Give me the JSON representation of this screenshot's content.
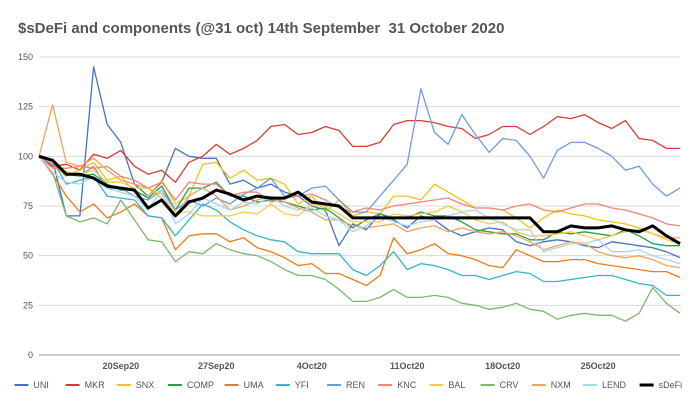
{
  "chart_data": {
    "type": "line",
    "title": "$sDeFi and components (@31 oct) 14th September  31 October 2020",
    "xlabel": "",
    "ylabel": "",
    "ylim": [
      0,
      150
    ],
    "yticks": [
      "0",
      "25",
      "50",
      "75",
      "100",
      "125",
      "150"
    ],
    "x": [
      "14Sep20",
      "15Sep20",
      "16Sep20",
      "17Sep20",
      "18Sep20",
      "19Sep20",
      "20Sep20",
      "21Sep20",
      "22Sep20",
      "23Sep20",
      "24Sep20",
      "25Sep20",
      "26Sep20",
      "27Sep20",
      "28Sep20",
      "29Sep20",
      "30Sep20",
      "1Oct20",
      "2Oct20",
      "3Oct20",
      "4Oct20",
      "5Oct20",
      "6Oct20",
      "7Oct20",
      "8Oct20",
      "9Oct20",
      "10Oct20",
      "11Oct20",
      "12Oct20",
      "13Oct20",
      "14Oct20",
      "15Oct20",
      "16Oct20",
      "17Oct20",
      "18Oct20",
      "19Oct20",
      "20Oct20",
      "21Oct20",
      "22Oct20",
      "23Oct20",
      "24Oct20",
      "25Oct20",
      "26Oct20",
      "27Oct20",
      "28Oct20",
      "29Oct20",
      "30Oct20",
      "31Oct20"
    ],
    "xtick_labels": [
      "20Sep20",
      "27Sep20",
      "4Oct20",
      "11Oct20",
      "18Oct20",
      "25Oct20"
    ],
    "xtick_positions": [
      "20Sep20",
      "27Sep20",
      "4Oct20",
      "11Oct20",
      "18Oct20",
      "25Oct20"
    ],
    "grid": true,
    "legend_position": "bottom",
    "series": [
      {
        "name": "UNI",
        "color": "#4472c4",
        "width": 1.3,
        "values": [
          100,
          98,
          70,
          70,
          145,
          116,
          107,
          86,
          80,
          87,
          104,
          100,
          99,
          99,
          86,
          88,
          84,
          86,
          82,
          80,
          75,
          73,
          55,
          66,
          63,
          71,
          68,
          64,
          70,
          68,
          63,
          60,
          62,
          64,
          63,
          57,
          55,
          57,
          58,
          57,
          55,
          54,
          57,
          56,
          55,
          54,
          52,
          49
        ]
      },
      {
        "name": "MKR",
        "color": "#db3a34",
        "width": 1.3,
        "values": [
          100,
          95,
          96,
          93,
          101,
          99,
          103,
          95,
          91,
          93,
          87,
          97,
          100,
          106,
          101,
          104,
          108,
          115,
          116,
          111,
          112,
          115,
          113,
          105,
          105,
          107,
          116,
          118,
          118,
          117,
          115,
          114,
          109,
          111,
          115,
          115,
          111,
          115,
          120,
          119,
          121,
          117,
          114,
          118,
          109,
          108,
          104,
          104
        ]
      },
      {
        "name": "SNX",
        "color": "#f0c419",
        "width": 1.3,
        "values": [
          100,
          96,
          90,
          93,
          97,
          88,
          90,
          82,
          80,
          88,
          76,
          80,
          96,
          97,
          89,
          93,
          88,
          89,
          86,
          76,
          80,
          72,
          78,
          70,
          72,
          71,
          80,
          80,
          78,
          86,
          82,
          78,
          74,
          74,
          73,
          69,
          64,
          69,
          73,
          71,
          70,
          68,
          67,
          66,
          64,
          61,
          59,
          59
        ]
      },
      {
        "name": "COMP",
        "color": "#2e9e4e",
        "width": 1.3,
        "values": [
          100,
          98,
          91,
          90,
          91,
          86,
          83,
          83,
          79,
          85,
          73,
          84,
          84,
          87,
          80,
          80,
          77,
          78,
          77,
          75,
          73,
          74,
          69,
          64,
          68,
          71,
          69,
          69,
          72,
          70,
          70,
          67,
          63,
          62,
          61,
          61,
          58,
          58,
          62,
          61,
          62,
          61,
          60,
          63,
          60,
          56,
          55,
          55
        ]
      },
      {
        "name": "UMA",
        "color": "#f07b16",
        "width": 1.3,
        "values": [
          100,
          91,
          80,
          72,
          76,
          69,
          72,
          76,
          70,
          69,
          53,
          60,
          61,
          61,
          57,
          59,
          54,
          52,
          49,
          45,
          46,
          41,
          41,
          38,
          35,
          40,
          59,
          51,
          53,
          56,
          51,
          50,
          48,
          45,
          44,
          53,
          50,
          47,
          47,
          48,
          48,
          46,
          45,
          44,
          43,
          42,
          42,
          39
        ]
      },
      {
        "name": "YFI",
        "color": "#34b5c9",
        "width": 1.3,
        "values": [
          100,
          98,
          86,
          88,
          90,
          80,
          79,
          78,
          70,
          69,
          60,
          68,
          76,
          73,
          67,
          63,
          60,
          58,
          57,
          52,
          51,
          51,
          51,
          43,
          40,
          45,
          52,
          43,
          46,
          45,
          43,
          40,
          40,
          38,
          40,
          42,
          41,
          37,
          37,
          38,
          39,
          40,
          40,
          38,
          36,
          35,
          30,
          30
        ]
      },
      {
        "name": "REN",
        "color": "#6e9be6",
        "width": 1.3,
        "values": [
          100,
          96,
          92,
          90,
          95,
          84,
          84,
          80,
          78,
          83,
          73,
          78,
          75,
          79,
          76,
          81,
          84,
          89,
          80,
          80,
          84,
          85,
          78,
          72,
          72,
          80,
          88,
          96,
          134,
          112,
          106,
          121,
          111,
          102,
          109,
          108,
          100,
          89,
          103,
          107,
          107,
          104,
          100,
          93,
          95,
          86,
          80,
          84
        ]
      },
      {
        "name": "KNC",
        "color": "#f2857a",
        "width": 1.3,
        "values": [
          100,
          94,
          94,
          95,
          94,
          95,
          90,
          88,
          84,
          87,
          78,
          87,
          86,
          86,
          80,
          82,
          82,
          77,
          79,
          80,
          81,
          78,
          74,
          72,
          74,
          73,
          75,
          76,
          77,
          78,
          79,
          76,
          74,
          74,
          73,
          75,
          76,
          73,
          72,
          74,
          76,
          76,
          74,
          73,
          71,
          69,
          66,
          65
        ]
      },
      {
        "name": "BAL",
        "color": "#f5cc45",
        "width": 1.3,
        "values": [
          100,
          97,
          92,
          91,
          93,
          87,
          87,
          84,
          84,
          81,
          72,
          72,
          70,
          70,
          70,
          72,
          71,
          76,
          71,
          70,
          76,
          75,
          71,
          67,
          67,
          67,
          71,
          70,
          71,
          72,
          75,
          72,
          68,
          66,
          67,
          62,
          60,
          60,
          61,
          62,
          60,
          58,
          60,
          62,
          63,
          61,
          58,
          56
        ]
      },
      {
        "name": "CRV",
        "color": "#7db86f",
        "width": 1.3,
        "values": [
          100,
          92,
          70,
          67,
          69,
          66,
          78,
          68,
          58,
          57,
          47,
          52,
          51,
          56,
          53,
          51,
          50,
          47,
          43,
          40,
          40,
          38,
          33,
          27,
          27,
          29,
          33,
          29,
          29,
          30,
          29,
          26,
          25,
          23,
          24,
          26,
          23,
          22,
          18,
          20,
          21,
          20,
          20,
          17,
          21,
          34,
          26,
          21
        ]
      },
      {
        "name": "NXM",
        "color": "#f0a45c",
        "width": 1.3,
        "values": [
          100,
          126,
          97,
          95,
          99,
          93,
          88,
          86,
          84,
          79,
          70,
          80,
          84,
          80,
          73,
          75,
          78,
          80,
          77,
          74,
          72,
          68,
          68,
          65,
          64,
          65,
          66,
          62,
          64,
          65,
          62,
          64,
          62,
          61,
          62,
          60,
          57,
          53,
          55,
          57,
          56,
          52,
          50,
          49,
          50,
          48,
          45,
          44
        ]
      },
      {
        "name": "LEND",
        "color": "#a9d5f0",
        "width": 1.3,
        "values": [
          100,
          92,
          87,
          86,
          90,
          84,
          82,
          80,
          73,
          83,
          66,
          71,
          79,
          76,
          73,
          77,
          76,
          80,
          75,
          73,
          74,
          70,
          68,
          62,
          65,
          70,
          67,
          65,
          67,
          68,
          70,
          72,
          73,
          69,
          66,
          63,
          63,
          52,
          54,
          56,
          56,
          58,
          52,
          52,
          53,
          50,
          48,
          46
        ]
      },
      {
        "name": "sDeFi",
        "color": "#000000",
        "width": 3,
        "values": [
          100,
          98,
          91,
          91,
          89,
          85,
          84,
          83,
          74,
          78,
          70,
          77,
          79,
          83,
          81,
          78,
          80,
          79,
          79,
          82,
          77,
          76,
          75,
          69,
          69,
          69,
          69,
          69,
          69,
          69,
          69,
          69,
          69,
          69,
          69,
          69,
          69,
          62,
          62,
          65,
          64,
          64,
          65,
          63,
          62,
          65,
          60,
          56
        ]
      }
    ]
  }
}
